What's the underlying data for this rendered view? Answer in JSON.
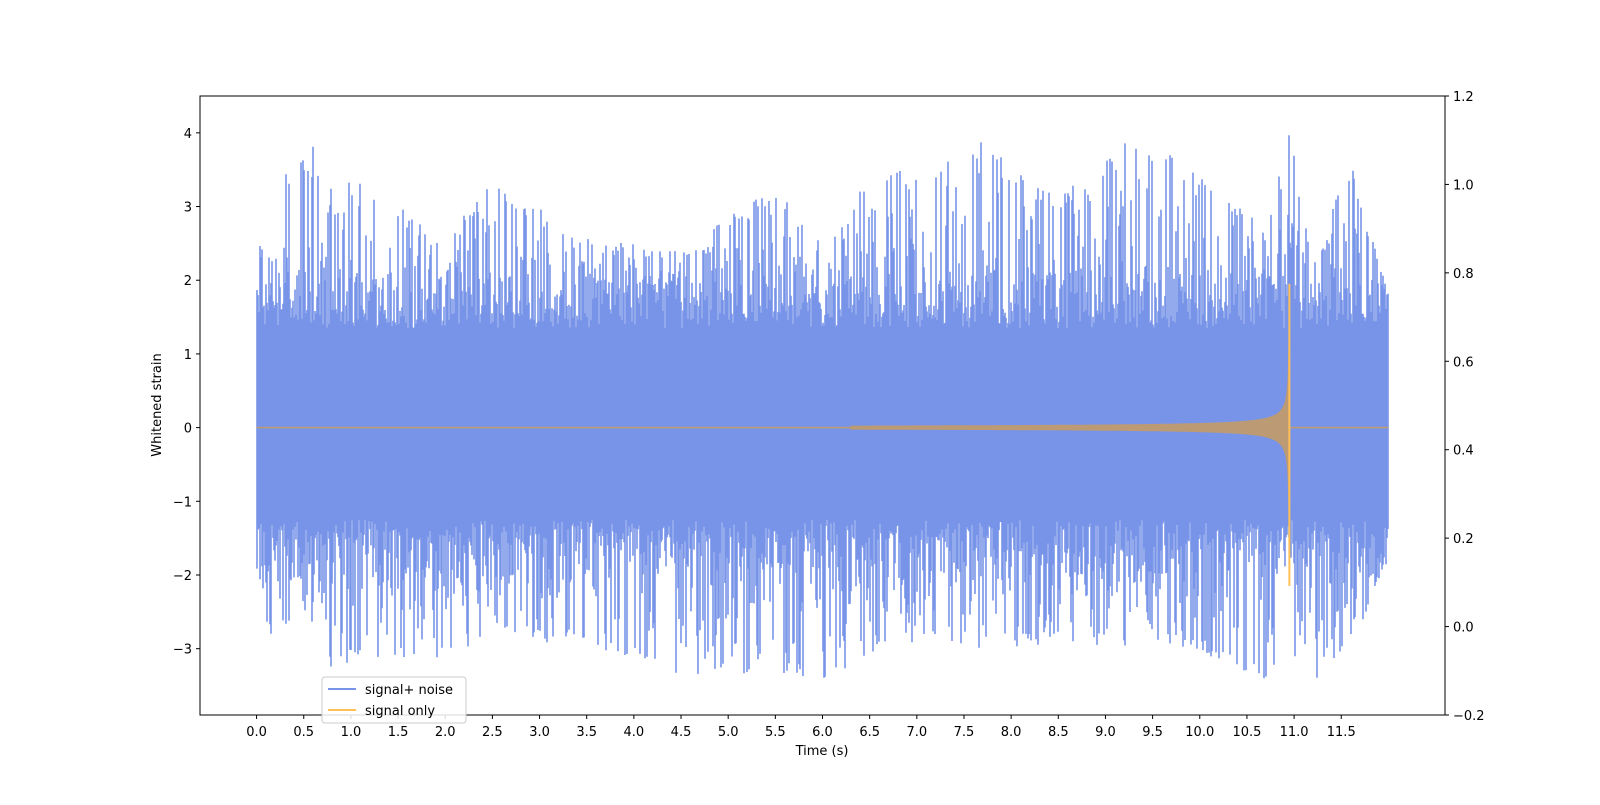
{
  "chart_data": {
    "type": "line",
    "title": "",
    "xlabel": "Time (s)",
    "ylabel": "Whitened strain",
    "xlim": [
      -0.6,
      12.6
    ],
    "ylim": [
      -3.9,
      4.5
    ],
    "y2lim": [
      -0.2,
      1.2
    ],
    "x_ticks": [
      0.0,
      0.5,
      1.0,
      1.5,
      2.0,
      2.5,
      3.0,
      3.5,
      4.0,
      4.5,
      5.0,
      5.5,
      6.0,
      6.5,
      7.0,
      7.5,
      8.0,
      8.5,
      9.0,
      9.5,
      10.0,
      10.5,
      11.0,
      11.5
    ],
    "x_tick_labels": [
      "0.0",
      "0.5",
      "1.0",
      "1.5",
      "2.0",
      "2.5",
      "3.0",
      "3.5",
      "4.0",
      "4.5",
      "5.0",
      "5.5",
      "6.0",
      "6.5",
      "7.0",
      "7.5",
      "8.0",
      "8.5",
      "9.0",
      "9.5",
      "10.0",
      "10.5",
      "11.0",
      "11.5"
    ],
    "y_ticks": [
      -3,
      -2,
      -1,
      0,
      1,
      2,
      3,
      4
    ],
    "y_tick_labels": [
      "−3",
      "−2",
      "−1",
      "0",
      "1",
      "2",
      "3",
      "4"
    ],
    "y2_ticks": [
      -0.2,
      0.0,
      0.2,
      0.4,
      0.6,
      0.8,
      1.0,
      1.2
    ],
    "y2_tick_labels": [
      "−0.2",
      "0.0",
      "0.2",
      "0.4",
      "0.6",
      "0.8",
      "1.0",
      "1.2"
    ],
    "grid": false,
    "legend_position": "lower-left",
    "series": [
      {
        "name": "signal+ noise",
        "color": "#7894e8",
        "description_hint": "noise",
        "x_range": [
          0.0,
          12.0
        ],
        "envelope": [
          {
            "x": 0.0,
            "max": 2.6,
            "min": -1.9
          },
          {
            "x": 0.05,
            "max": 2.87,
            "min": -3.0
          },
          {
            "x": 0.55,
            "max": 4.03,
            "min": -2.5
          },
          {
            "x": 0.75,
            "max": 3.35,
            "min": -3.35
          },
          {
            "x": 1.15,
            "max": 3.48,
            "min": -3.1
          },
          {
            "x": 1.95,
            "max": 2.5,
            "min": -3.2
          },
          {
            "x": 2.5,
            "max": 3.35,
            "min": -2.8
          },
          {
            "x": 3.5,
            "max": 2.6,
            "min": -3.0
          },
          {
            "x": 4.5,
            "max": 2.4,
            "min": -3.35
          },
          {
            "x": 5.5,
            "max": 3.3,
            "min": -3.35
          },
          {
            "x": 6.05,
            "max": 2.4,
            "min": -3.45
          },
          {
            "x": 6.5,
            "max": 3.5,
            "min": -3.1
          },
          {
            "x": 7.0,
            "max": 3.55,
            "min": -3.0
          },
          {
            "x": 7.6,
            "max": 3.95,
            "min": -3.0
          },
          {
            "x": 8.5,
            "max": 3.1,
            "min": -3.0
          },
          {
            "x": 9.3,
            "max": 4.03,
            "min": -3.0
          },
          {
            "x": 9.95,
            "max": 3.55,
            "min": -3.0
          },
          {
            "x": 10.7,
            "max": 2.7,
            "min": -3.52
          },
          {
            "x": 10.95,
            "max": 4.1,
            "min": -3.0
          },
          {
            "x": 11.2,
            "max": 2.3,
            "min": -3.45
          },
          {
            "x": 11.6,
            "max": 3.6,
            "min": -3.0
          },
          {
            "x": 12.0,
            "max": 1.8,
            "min": -1.8
          }
        ]
      },
      {
        "name": "signal only",
        "color": "#ffc058",
        "overlay_color": "#bb9a74",
        "model": "chirp",
        "merger_time": 10.95,
        "start_visible": 6.3,
        "peak_amplitude": 1.95,
        "min_amplitude": -2.15,
        "ringdown_end": 11.0
      }
    ]
  }
}
